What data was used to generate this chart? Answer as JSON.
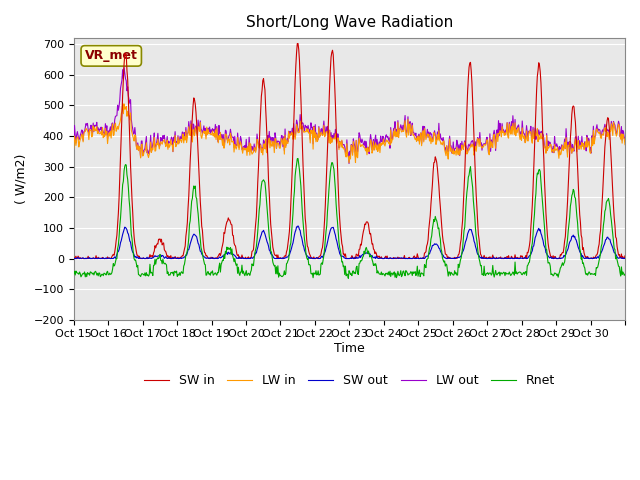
{
  "title": "Short/Long Wave Radiation",
  "xlabel": "Time",
  "ylabel": "( W/m2)",
  "ylim": [
    -200,
    720
  ],
  "yticks": [
    -200,
    -100,
    0,
    100,
    200,
    300,
    400,
    500,
    600,
    700
  ],
  "x_labels": [
    "Oct 15",
    "Oct 16",
    "Oct 17",
    "Oct 18",
    "Oct 19",
    "Oct 20",
    "Oct 21",
    "Oct 22",
    "Oct 23",
    "Oct 24",
    "Oct 25",
    "Oct 26",
    "Oct 27",
    "Oct 28",
    "Oct 29",
    "Oct 30",
    ""
  ],
  "station_label": "VR_met",
  "legend_entries": [
    "SW in",
    "LW in",
    "SW out",
    "LW out",
    "Rnet"
  ],
  "line_colors": {
    "SW in": "#cc0000",
    "LW in": "#ff9900",
    "SW out": "#0000cc",
    "LW out": "#9900cc",
    "Rnet": "#00aa00"
  },
  "background_color": "#ffffff",
  "plot_bg_color": "#e8e8e8",
  "grid_color": "#ffffff",
  "n_days": 16,
  "points_per_day": 48,
  "sw_in_peaks": [
    0,
    670,
    60,
    520,
    130,
    590,
    700,
    680,
    120,
    0,
    330,
    640,
    0,
    640,
    500,
    460
  ]
}
